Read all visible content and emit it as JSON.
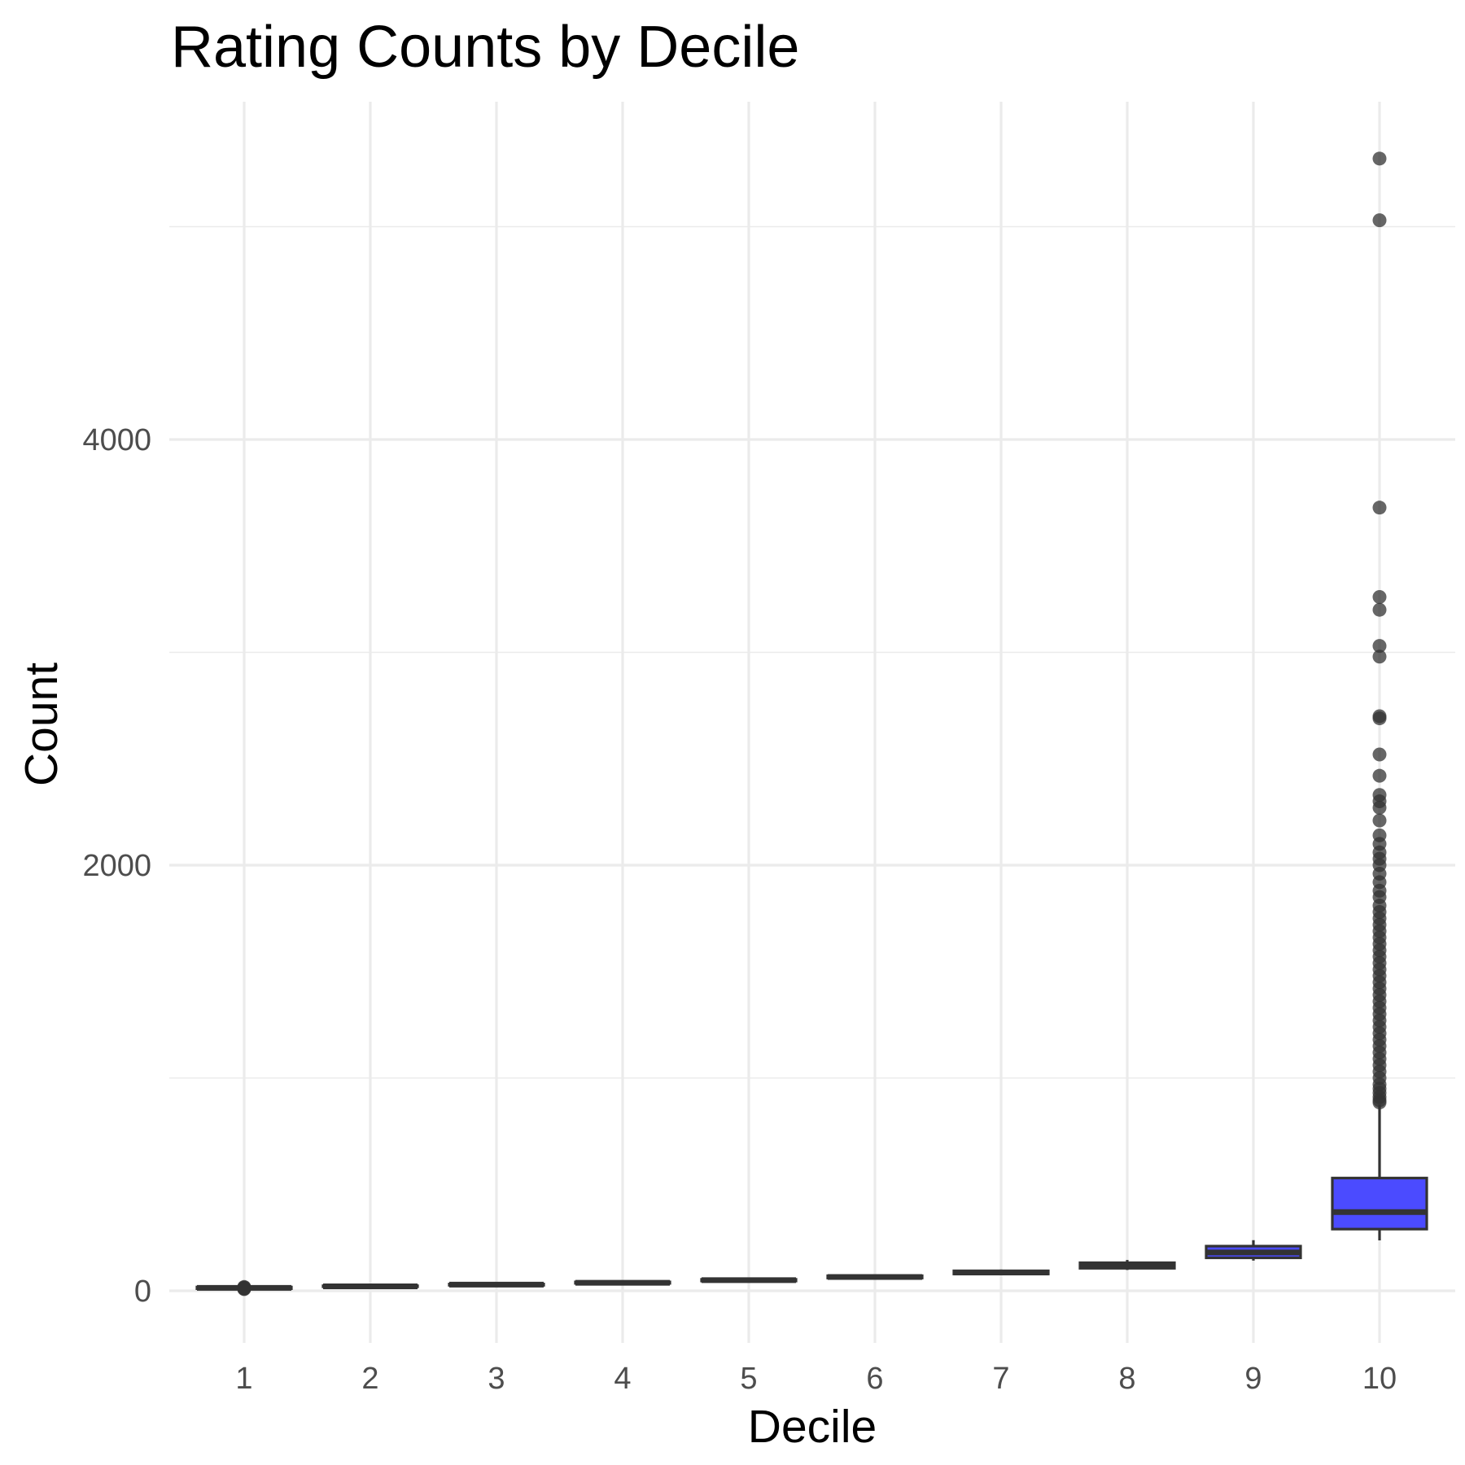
{
  "chart_data": {
    "type": "boxplot",
    "title": "Rating Counts by Decile",
    "xlabel": "Decile",
    "ylabel": "Count",
    "categories": [
      "1",
      "2",
      "3",
      "4",
      "5",
      "6",
      "7",
      "8",
      "9",
      "10"
    ],
    "y_ticks": [
      0,
      2000,
      4000
    ],
    "y_tick_labels": [
      "0",
      "2000",
      "4000"
    ],
    "ylim": [
      -250,
      5700
    ],
    "grid": true,
    "legend": "none",
    "colors": {
      "box_fill": "#4b4bff",
      "box_stroke": "#333333",
      "outlier": "#333333",
      "panel": "#ffffff",
      "grid": "#ebebeb"
    },
    "boxes": [
      {
        "decile": "1",
        "min": 6,
        "q1": 10,
        "median": 14,
        "q3": 18,
        "max": 24,
        "fill": "#4b4bff"
      },
      {
        "decile": "2",
        "min": 17,
        "q1": 19,
        "median": 21,
        "q3": 24,
        "max": 26,
        "fill": "#4b4bff"
      },
      {
        "decile": "3",
        "min": 24,
        "q1": 26,
        "median": 29,
        "q3": 32,
        "max": 35,
        "fill": "#4b4bff"
      },
      {
        "decile": "4",
        "min": 33,
        "q1": 35,
        "median": 38,
        "q3": 42,
        "max": 45,
        "fill": "#4b4bff"
      },
      {
        "decile": "5",
        "min": 43,
        "q1": 46,
        "median": 50,
        "q3": 54,
        "max": 58,
        "fill": "#4b4bff"
      },
      {
        "decile": "6",
        "min": 56,
        "q1": 60,
        "median": 65,
        "q3": 71,
        "max": 76,
        "fill": "#4b4bff"
      },
      {
        "decile": "7",
        "min": 74,
        "q1": 79,
        "median": 86,
        "q3": 94,
        "max": 100,
        "fill": "#4b4bff"
      },
      {
        "decile": "8",
        "min": 98,
        "q1": 106,
        "median": 118,
        "q3": 132,
        "max": 145,
        "fill": "#4b4bff"
      },
      {
        "decile": "9",
        "min": 142,
        "q1": 155,
        "median": 180,
        "q3": 210,
        "max": 238,
        "fill": "#4b4bff"
      },
      {
        "decile": "10",
        "min": 237,
        "q1": 290,
        "median": 370,
        "q3": 530,
        "max": 875,
        "fill": "#4b4bff"
      }
    ],
    "outliers": [
      {
        "decile": "1",
        "values": [
          8,
          10,
          12,
          14,
          16,
          18
        ]
      },
      {
        "decile": "10",
        "values": [
          5320,
          5030,
          3680,
          3260,
          3200,
          3030,
          2980,
          2700,
          2690,
          2520,
          2420,
          2330,
          2300,
          2270,
          2210,
          2140,
          2100,
          2060,
          2030,
          2000,
          1960,
          1920,
          1880,
          1850,
          1810,
          1780,
          1750,
          1720,
          1690,
          1660,
          1630,
          1600,
          1570,
          1540,
          1510,
          1480,
          1450,
          1420,
          1390,
          1360,
          1330,
          1300,
          1270,
          1240,
          1210,
          1180,
          1150,
          1120,
          1090,
          1060,
          1030,
          1000,
          970,
          950,
          930,
          910,
          895,
          885
        ]
      }
    ]
  }
}
